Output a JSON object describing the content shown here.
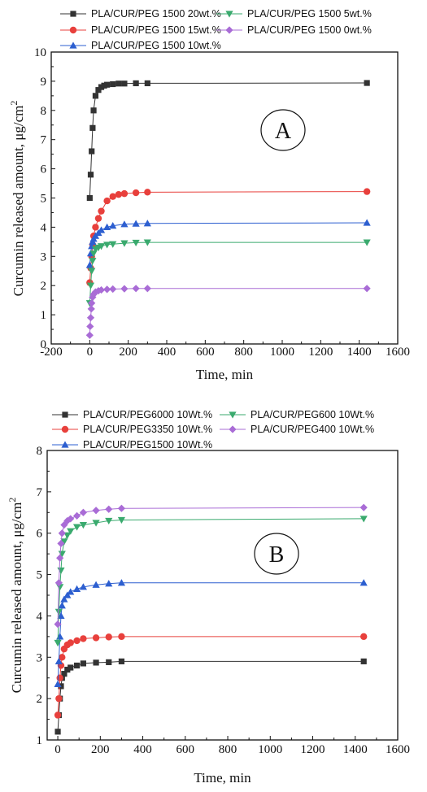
{
  "chart_data": [
    {
      "type": "scatter",
      "panel_label": "A",
      "title": "",
      "xlabel": "Time, min",
      "ylabel": "Curcumin released amount,  μg/cm",
      "ylabel_sup": "2",
      "xlim": [
        -200,
        1600
      ],
      "ylim": [
        0,
        10
      ],
      "xticks": [
        "-200",
        "0",
        "200",
        "400",
        "600",
        "800",
        "1000",
        "1200",
        "1400",
        "1600"
      ],
      "yticks": [
        "0",
        "1",
        "2",
        "3",
        "4",
        "5",
        "6",
        "7",
        "8",
        "9",
        "10"
      ],
      "grid": false,
      "legend_position": "top",
      "legend_columns": 2,
      "series": [
        {
          "name": "PLA/CUR/PEG 1500 20wt.%",
          "color": "#333333",
          "marker": "square",
          "x": [
            0,
            5,
            10,
            15,
            20,
            30,
            45,
            60,
            75,
            90,
            120,
            150,
            180,
            240,
            300,
            1440
          ],
          "y": [
            5.0,
            5.8,
            6.6,
            7.4,
            8.0,
            8.5,
            8.7,
            8.8,
            8.85,
            8.88,
            8.9,
            8.92,
            8.92,
            8.93,
            8.93,
            8.94
          ]
        },
        {
          "name": "PLA/CUR/PEG 1500 15wt.%",
          "color": "#e8403c",
          "marker": "circle",
          "x": [
            0,
            5,
            10,
            15,
            20,
            30,
            45,
            60,
            90,
            120,
            150,
            180,
            240,
            300,
            1440
          ],
          "y": [
            2.1,
            2.6,
            3.0,
            3.4,
            3.7,
            4.0,
            4.3,
            4.55,
            4.9,
            5.05,
            5.12,
            5.15,
            5.18,
            5.2,
            5.22
          ]
        },
        {
          "name": "PLA/CUR/PEG 1500 10wt.%",
          "color": "#2d5fd0",
          "marker": "triangle-up",
          "x": [
            0,
            5,
            10,
            15,
            20,
            30,
            45,
            60,
            90,
            120,
            180,
            240,
            300,
            1440
          ],
          "y": [
            2.7,
            3.1,
            3.35,
            3.5,
            3.6,
            3.7,
            3.8,
            3.9,
            4.0,
            4.05,
            4.1,
            4.12,
            4.13,
            4.15
          ]
        },
        {
          "name": "PLA/CUR/PEG 1500 5wt.%",
          "color": "#3aaa6e",
          "marker": "triangle-down",
          "x": [
            0,
            5,
            10,
            15,
            20,
            30,
            45,
            60,
            90,
            120,
            180,
            240,
            300,
            1440
          ],
          "y": [
            1.4,
            2.0,
            2.5,
            2.85,
            3.1,
            3.25,
            3.3,
            3.35,
            3.4,
            3.42,
            3.45,
            3.47,
            3.48,
            3.48
          ]
        },
        {
          "name": "PLA/CUR/PEG 1500 0wt.%",
          "color": "#a96cd6",
          "marker": "diamond",
          "x": [
            0,
            2,
            5,
            8,
            10,
            15,
            20,
            30,
            45,
            60,
            90,
            120,
            180,
            240,
            300,
            1440
          ],
          "y": [
            0.3,
            0.6,
            0.9,
            1.2,
            1.4,
            1.6,
            1.7,
            1.78,
            1.82,
            1.85,
            1.87,
            1.88,
            1.89,
            1.9,
            1.9,
            1.9
          ]
        }
      ]
    },
    {
      "type": "scatter",
      "panel_label": "B",
      "title": "",
      "xlabel": "Time, min",
      "ylabel": "Curcumin released amount,  μg/cm",
      "ylabel_sup": "2",
      "xlim": [
        -50,
        1600
      ],
      "ylim": [
        1,
        8
      ],
      "xticks": [
        "0",
        "200",
        "400",
        "600",
        "800",
        "1000",
        "1200",
        "1400",
        "1600"
      ],
      "yticks": [
        "1",
        "2",
        "3",
        "4",
        "5",
        "6",
        "7",
        "8"
      ],
      "grid": false,
      "legend_position": "top",
      "legend_columns": 2,
      "series": [
        {
          "name": "PLA/CUR/PEG6000 10Wt.%",
          "color": "#333333",
          "marker": "square",
          "x": [
            0,
            5,
            10,
            15,
            20,
            30,
            45,
            60,
            90,
            120,
            180,
            240,
            300,
            1440
          ],
          "y": [
            1.2,
            1.6,
            2.0,
            2.3,
            2.5,
            2.6,
            2.7,
            2.75,
            2.8,
            2.85,
            2.87,
            2.88,
            2.9,
            2.9
          ]
        },
        {
          "name": "PLA/CUR/PEG3350 10Wt.%",
          "color": "#e8403c",
          "marker": "circle",
          "x": [
            0,
            5,
            10,
            15,
            20,
            30,
            45,
            60,
            90,
            120,
            180,
            240,
            300,
            1440
          ],
          "y": [
            1.6,
            2.0,
            2.5,
            2.8,
            3.0,
            3.2,
            3.3,
            3.35,
            3.4,
            3.45,
            3.47,
            3.49,
            3.5,
            3.5
          ]
        },
        {
          "name": "PLA/CUR/PEG1500 10Wt.%",
          "color": "#2d5fd0",
          "marker": "triangle-up",
          "x": [
            0,
            5,
            10,
            15,
            20,
            30,
            45,
            60,
            90,
            120,
            180,
            240,
            300,
            1440
          ],
          "y": [
            2.35,
            2.9,
            3.5,
            4.0,
            4.25,
            4.4,
            4.5,
            4.58,
            4.65,
            4.7,
            4.75,
            4.78,
            4.8,
            4.8
          ]
        },
        {
          "name": "PLA/CUR/PEG600 10Wt.%",
          "color": "#3aaa6e",
          "marker": "triangle-down",
          "x": [
            0,
            5,
            10,
            15,
            20,
            30,
            45,
            60,
            90,
            120,
            180,
            240,
            300,
            1440
          ],
          "y": [
            3.35,
            4.1,
            4.7,
            5.1,
            5.5,
            5.8,
            5.95,
            6.05,
            6.15,
            6.2,
            6.25,
            6.3,
            6.32,
            6.35
          ]
        },
        {
          "name": "PLA/CUR/PEG400 10Wt.%",
          "color": "#a96cd6",
          "marker": "diamond",
          "x": [
            0,
            5,
            10,
            15,
            20,
            30,
            45,
            60,
            90,
            120,
            180,
            240,
            300,
            1440
          ],
          "y": [
            3.8,
            4.8,
            5.4,
            5.75,
            6.0,
            6.2,
            6.3,
            6.35,
            6.42,
            6.5,
            6.55,
            6.58,
            6.6,
            6.62
          ]
        }
      ]
    }
  ]
}
